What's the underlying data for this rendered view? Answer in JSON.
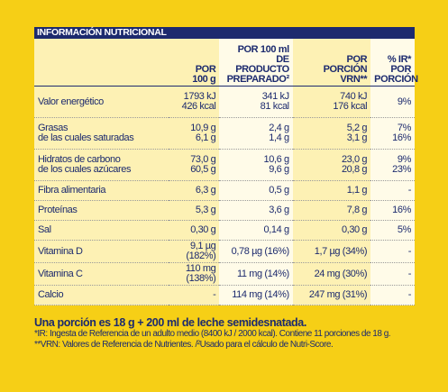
{
  "table": {
    "title": "INFORMACIÓN NUTRICIONAL",
    "header": [
      [
        ""
      ],
      [
        "POR",
        "100 g"
      ],
      [
        "POR 100 ml",
        "DE PRODUCTO",
        "PREPARADO²"
      ],
      [
        "POR",
        "PORCIÓN",
        "VRN**"
      ],
      [
        "% IR*",
        "POR",
        "PORCIÓN"
      ]
    ],
    "rows": [
      [
        [
          "Valor energético"
        ],
        [
          "1793 kJ",
          "426 kcal"
        ],
        [
          "341 kJ",
          "81 kcal"
        ],
        [
          "740 kJ",
          "176 kcal"
        ],
        [
          "9%"
        ]
      ],
      [
        [
          "Grasas",
          "de las cuales saturadas"
        ],
        [
          "10,9 g",
          "6,1 g"
        ],
        [
          "2,4 g",
          "1,4 g"
        ],
        [
          "5,2 g",
          "3,1 g"
        ],
        [
          "7%",
          "16%"
        ]
      ],
      [
        [
          "Hidratos de carbono",
          "de los cuales azúcares"
        ],
        [
          "73,0 g",
          "60,5 g"
        ],
        [
          "10,6 g",
          "9,6 g"
        ],
        [
          "23,0 g",
          "20,8 g"
        ],
        [
          "9%",
          "23%"
        ]
      ],
      [
        [
          "Fibra alimentaria"
        ],
        [
          "6,3 g"
        ],
        [
          "0,5 g"
        ],
        [
          "1,1 g"
        ],
        [
          "-"
        ]
      ],
      [
        [
          "Proteínas"
        ],
        [
          "5,3 g"
        ],
        [
          "3,6 g"
        ],
        [
          "7,8 g"
        ],
        [
          "16%"
        ]
      ],
      [
        [
          "Sal"
        ],
        [
          "0,30 g"
        ],
        [
          "0,14 g"
        ],
        [
          "0,30 g"
        ],
        [
          "5%"
        ]
      ],
      [
        [
          "Vitamina D"
        ],
        [
          "9,1 µg (182%)"
        ],
        [
          "0,78 µg (16%)"
        ],
        [
          "1,7 µg (34%)"
        ],
        [
          "-"
        ]
      ],
      [
        [
          "Vitamina C"
        ],
        [
          "110 mg (138%)"
        ],
        [
          "11 mg (14%)"
        ],
        [
          "24 mg (30%)"
        ],
        [
          "-"
        ]
      ],
      [
        [
          "Calcio"
        ],
        [
          "-"
        ],
        [
          "114 mg (14%)"
        ],
        [
          "247 mg (31%)"
        ],
        [
          "-"
        ]
      ]
    ]
  },
  "footer": {
    "serving": "Una porción es 18 g + 200 ml de leche semidesnatada.",
    "notes": [
      "*IR: Ingesta de Referencia de un adulto medio (8400 kJ / 2000 kcal). Contiene 11 porciones de 18 g.",
      "**VRN: Valores de Referencia de Nutrientes. /²Usado para el cálculo de Nutri-Score."
    ]
  }
}
